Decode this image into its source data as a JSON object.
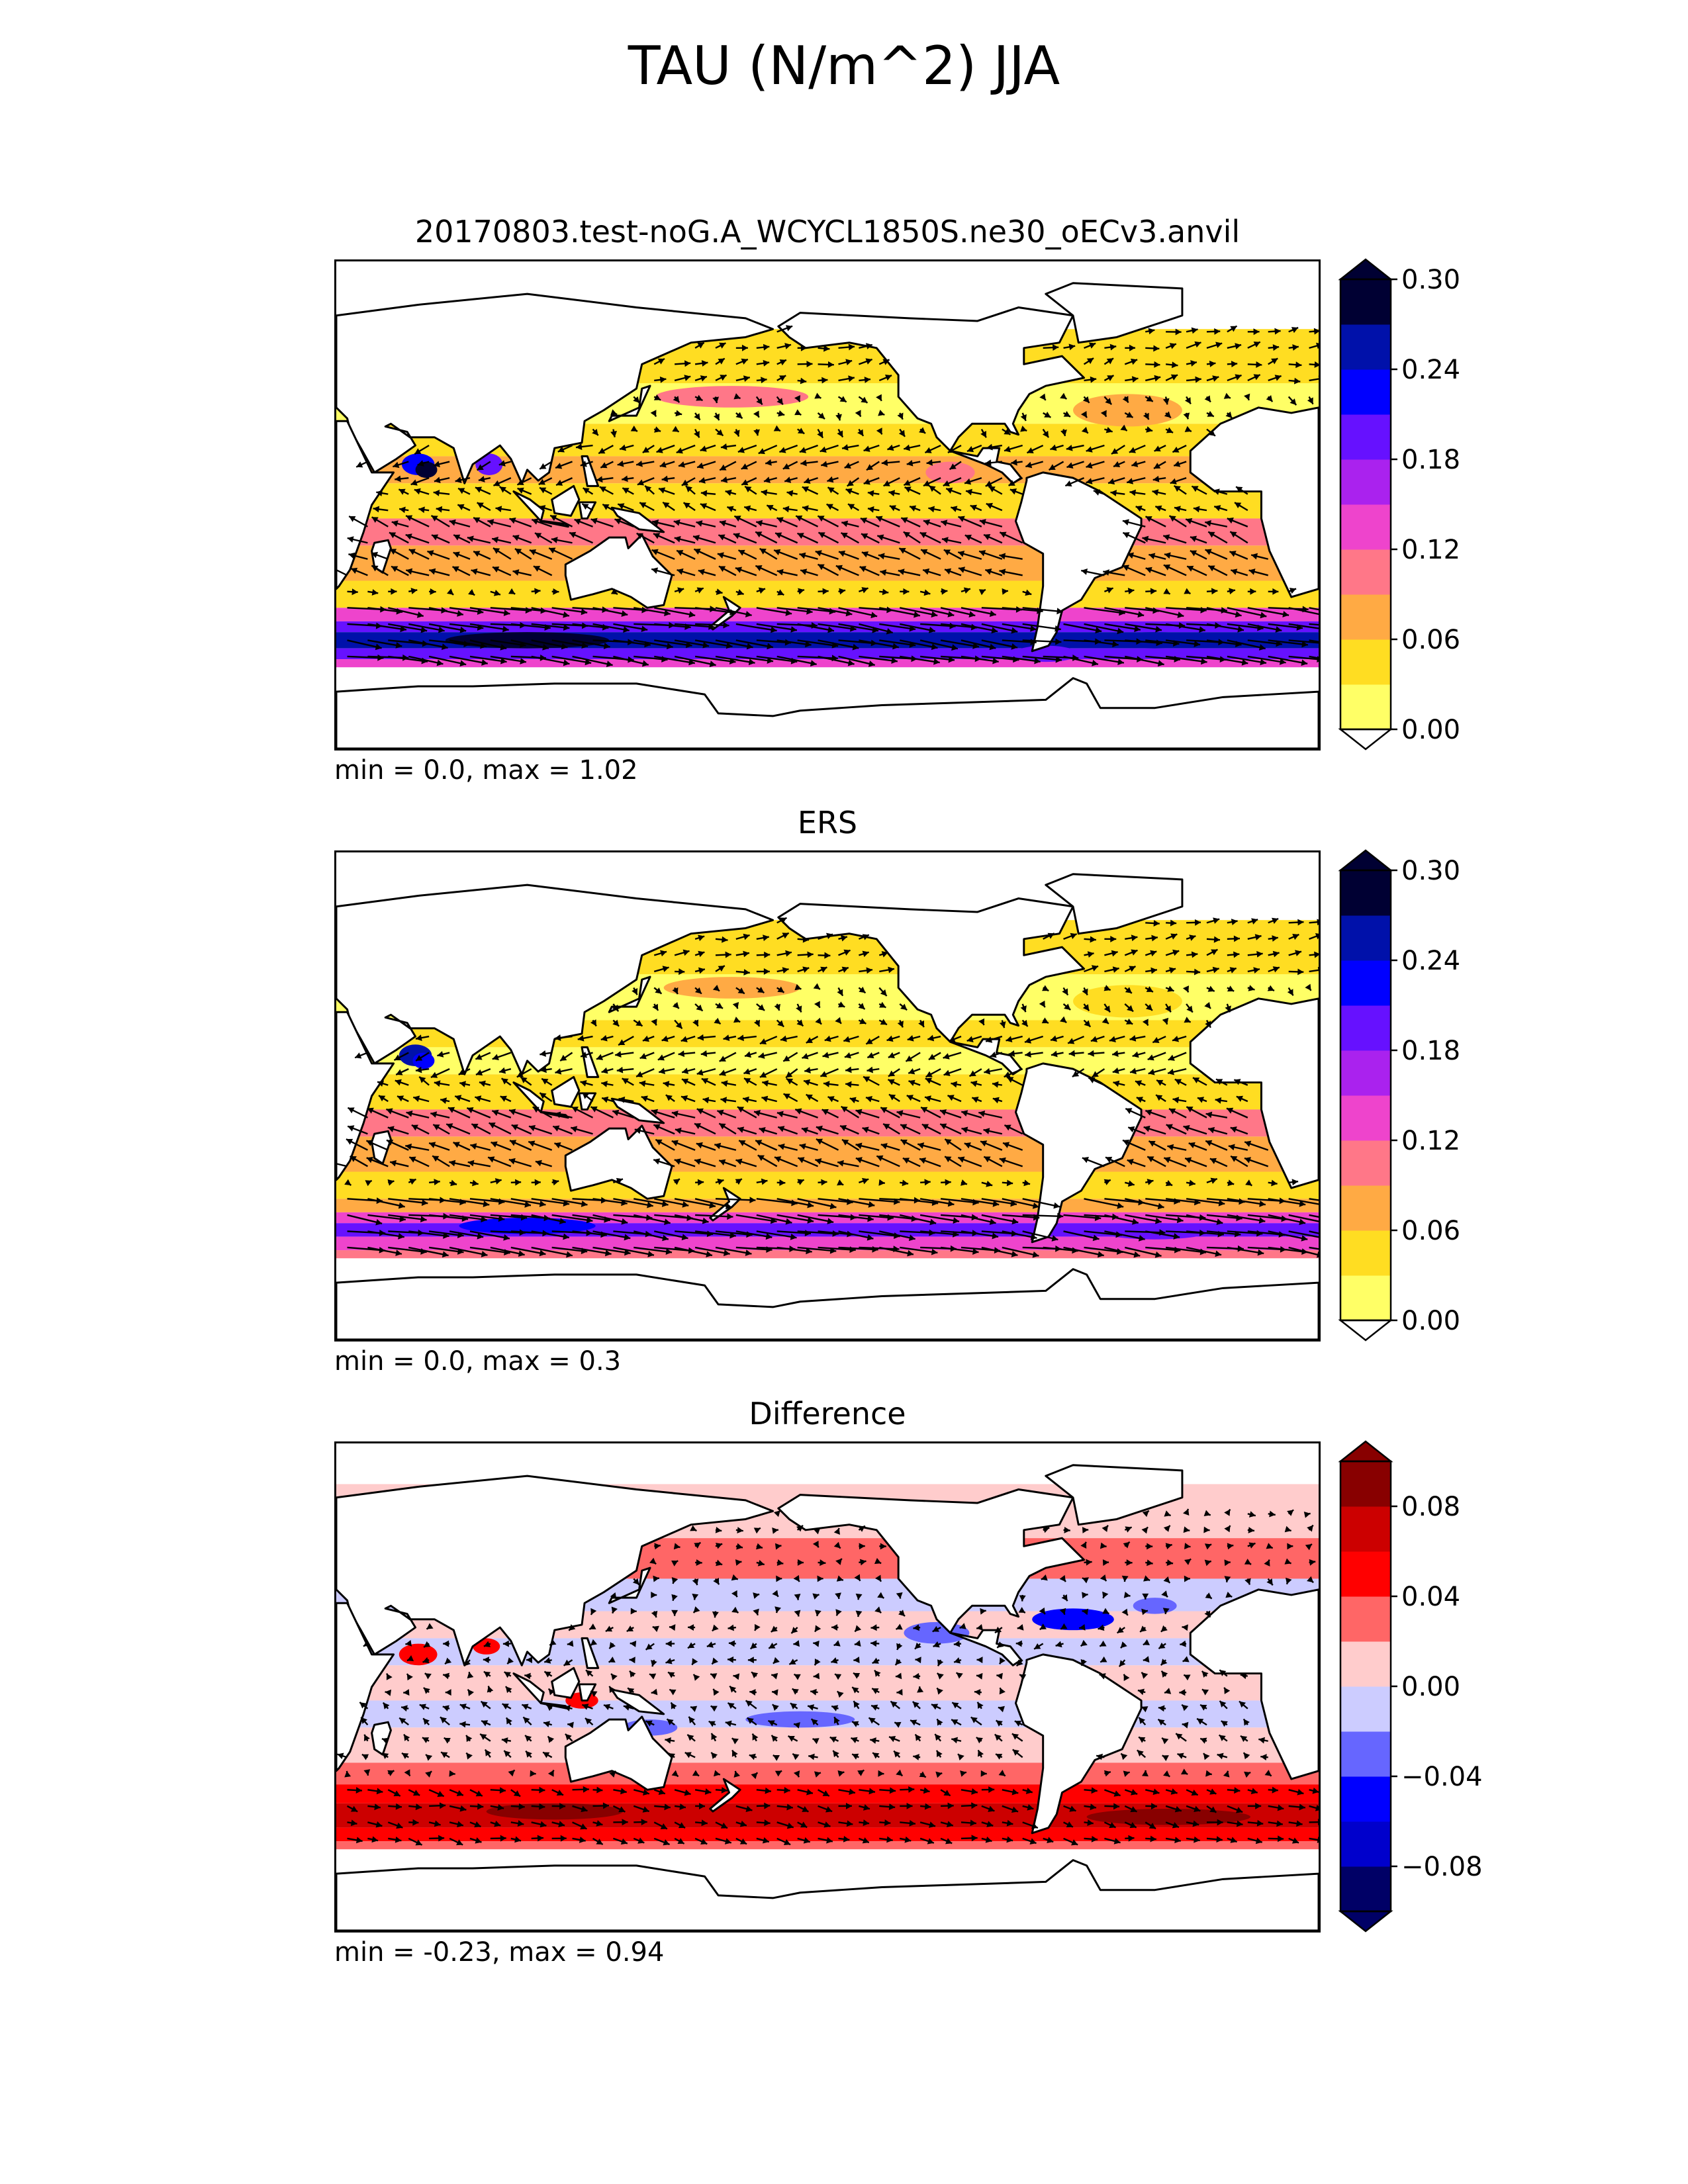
{
  "figure": {
    "title": "TAU (N/m^2) JJA"
  },
  "panels": [
    {
      "title": "20170803.test-noG.A_WCYCL1850S.ne30_oECv3.anvil",
      "stats": "min = 0.0, max = 1.02",
      "colormap": "sequential",
      "colorbar": {
        "ticks": [
          "0.00",
          "0.06",
          "0.12",
          "0.18",
          "0.24",
          "0.30"
        ],
        "colors": [
          "#ffff66",
          "#ffdd22",
          "#ffaa44",
          "#ff7788",
          "#ee44cc",
          "#aa22ee",
          "#6611ff",
          "#0000ff",
          "#0011aa",
          "#000033"
        ],
        "extend": "both"
      }
    },
    {
      "title": "ERS",
      "stats": "min = 0.0, max = 0.3",
      "colormap": "sequential",
      "colorbar": {
        "ticks": [
          "0.00",
          "0.06",
          "0.12",
          "0.18",
          "0.24",
          "0.30"
        ],
        "colors": [
          "#ffff66",
          "#ffdd22",
          "#ffaa44",
          "#ff7788",
          "#ee44cc",
          "#aa22ee",
          "#6611ff",
          "#0000ff",
          "#0011aa",
          "#000033"
        ],
        "extend": "both"
      }
    },
    {
      "title": "Difference",
      "stats": "min = -0.23, max = 0.94",
      "colormap": "diverging",
      "colorbar": {
        "ticks": [
          "−0.08",
          "−0.04",
          "0.00",
          "0.04",
          "0.08"
        ],
        "colors": [
          "#000066",
          "#0000cc",
          "#0000ff",
          "#6666ff",
          "#ccccff",
          "#ffcccc",
          "#ff6666",
          "#ff0000",
          "#cc0000",
          "#880000"
        ],
        "extend": "both"
      }
    }
  ]
}
